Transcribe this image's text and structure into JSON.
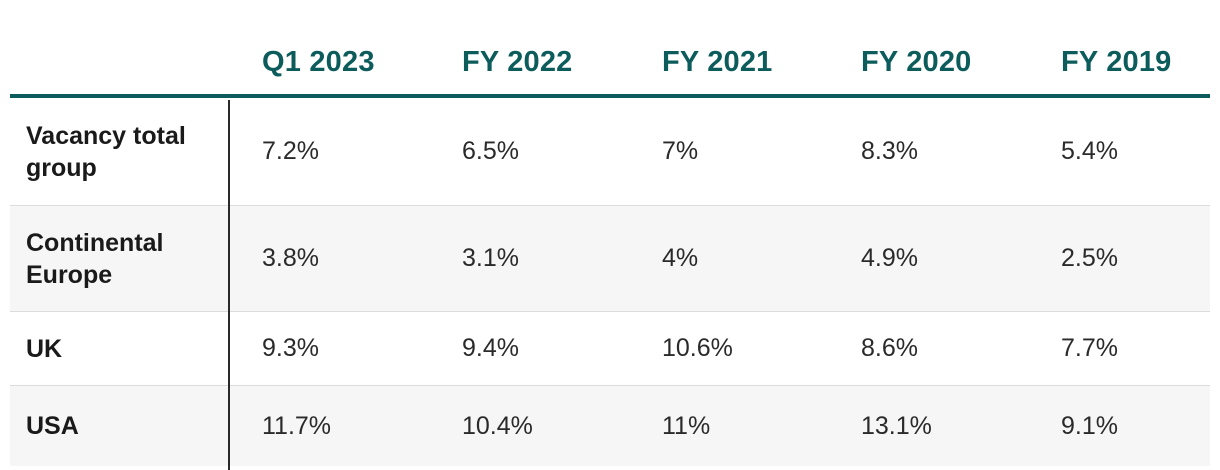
{
  "table": {
    "columns": [
      "Q1 2023",
      "FY 2022",
      "FY 2021",
      "FY 2020",
      "FY 2019"
    ],
    "rows": [
      {
        "label": "Vacancy total group",
        "values": [
          "7.2%",
          "6.5%",
          "7%",
          "8.3%",
          "5.4%"
        ]
      },
      {
        "label": "Continental Europe",
        "values": [
          "3.8%",
          "3.1%",
          "4%",
          "4.9%",
          "2.5%"
        ]
      },
      {
        "label": "UK",
        "values": [
          "9.3%",
          "9.4%",
          "10.6%",
          "8.6%",
          "7.7%"
        ]
      },
      {
        "label": "USA",
        "values": [
          "11.7%",
          "10.4%",
          "11%",
          "13.1%",
          "9.1%"
        ]
      }
    ]
  },
  "colors": {
    "header_text": "#0d5c5c",
    "header_rule": "#0d5c5c",
    "alt_row_bg": "#f6f6f6"
  }
}
